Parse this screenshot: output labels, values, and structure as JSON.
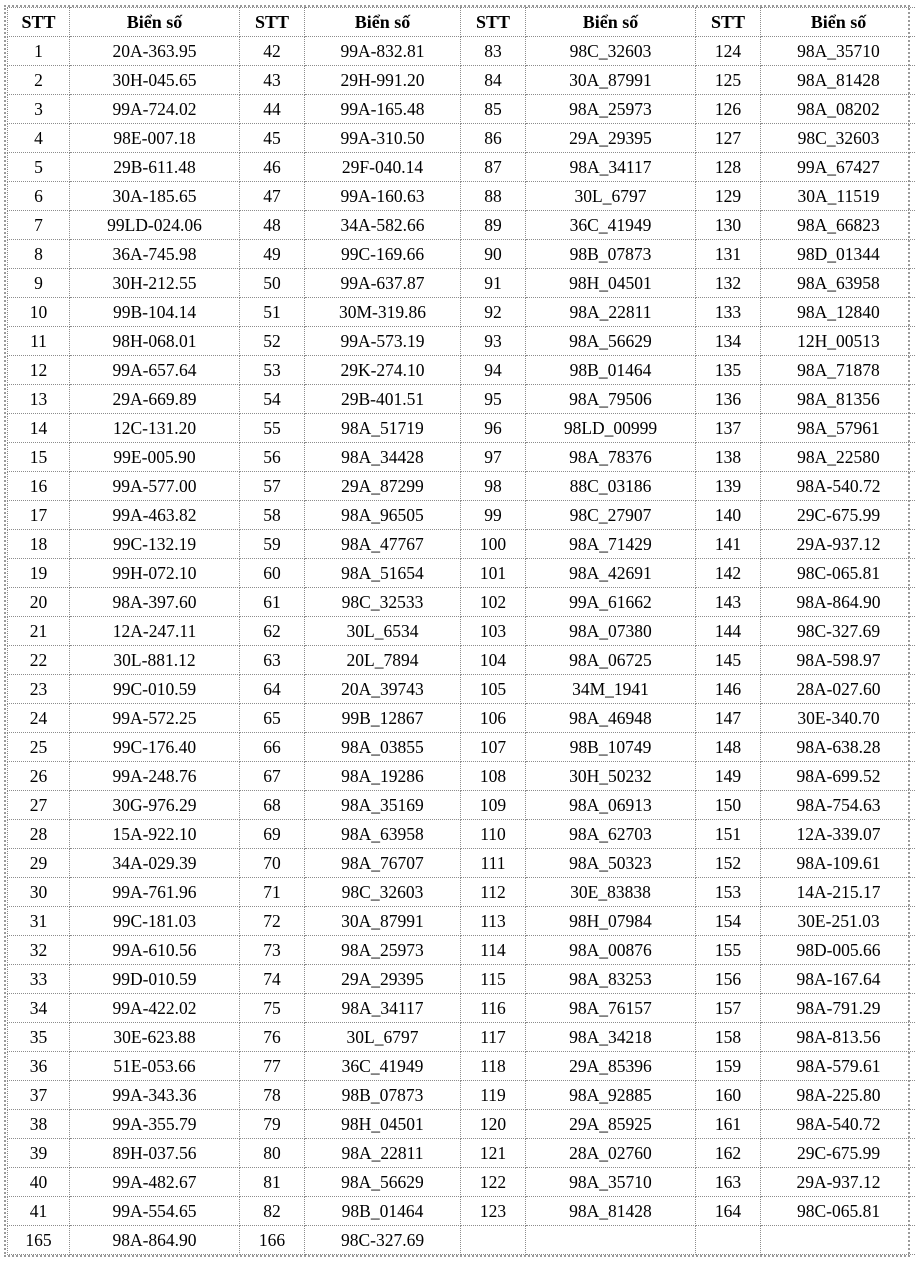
{
  "header": {
    "stt": "STT",
    "plate": "Biển số"
  },
  "rows": [
    [
      "1",
      "20A-363.95",
      "42",
      "99A-832.81",
      "83",
      "98C_32603",
      "124",
      "98A_35710"
    ],
    [
      "2",
      "30H-045.65",
      "43",
      "29H-991.20",
      "84",
      "30A_87991",
      "125",
      "98A_81428"
    ],
    [
      "3",
      "99A-724.02",
      "44",
      "99A-165.48",
      "85",
      "98A_25973",
      "126",
      "98A_08202"
    ],
    [
      "4",
      "98E-007.18",
      "45",
      "99A-310.50",
      "86",
      "29A_29395",
      "127",
      "98C_32603"
    ],
    [
      "5",
      "29B-611.48",
      "46",
      "29F-040.14",
      "87",
      "98A_34117",
      "128",
      "99A_67427"
    ],
    [
      "6",
      "30A-185.65",
      "47",
      "99A-160.63",
      "88",
      "30L_6797",
      "129",
      "30A_11519"
    ],
    [
      "7",
      "99LD-024.06",
      "48",
      "34A-582.66",
      "89",
      "36C_41949",
      "130",
      "98A_66823"
    ],
    [
      "8",
      "36A-745.98",
      "49",
      "99C-169.66",
      "90",
      "98B_07873",
      "131",
      "98D_01344"
    ],
    [
      "9",
      "30H-212.55",
      "50",
      "99A-637.87",
      "91",
      "98H_04501",
      "132",
      "98A_63958"
    ],
    [
      "10",
      "99B-104.14",
      "51",
      "30M-319.86",
      "92",
      "98A_22811",
      "133",
      "98A_12840"
    ],
    [
      "11",
      "98H-068.01",
      "52",
      "99A-573.19",
      "93",
      "98A_56629",
      "134",
      "12H_00513"
    ],
    [
      "12",
      "99A-657.64",
      "53",
      "29K-274.10",
      "94",
      "98B_01464",
      "135",
      "98A_71878"
    ],
    [
      "13",
      "29A-669.89",
      "54",
      "29B-401.51",
      "95",
      "98A_79506",
      "136",
      "98A_81356"
    ],
    [
      "14",
      "12C-131.20",
      "55",
      "98A_51719",
      "96",
      "98LD_00999",
      "137",
      "98A_57961"
    ],
    [
      "15",
      "99E-005.90",
      "56",
      "98A_34428",
      "97",
      "98A_78376",
      "138",
      "98A_22580"
    ],
    [
      "16",
      "99A-577.00",
      "57",
      "29A_87299",
      "98",
      "88C_03186",
      "139",
      "98A-540.72"
    ],
    [
      "17",
      "99A-463.82",
      "58",
      "98A_96505",
      "99",
      "98C_27907",
      "140",
      "29C-675.99"
    ],
    [
      "18",
      "99C-132.19",
      "59",
      "98A_47767",
      "100",
      "98A_71429",
      "141",
      "29A-937.12"
    ],
    [
      "19",
      "99H-072.10",
      "60",
      "98A_51654",
      "101",
      "98A_42691",
      "142",
      "98C-065.81"
    ],
    [
      "20",
      "98A-397.60",
      "61",
      "98C_32533",
      "102",
      "99A_61662",
      "143",
      "98A-864.90"
    ],
    [
      "21",
      "12A-247.11",
      "62",
      "30L_6534",
      "103",
      "98A_07380",
      "144",
      "98C-327.69"
    ],
    [
      "22",
      "30L-881.12",
      "63",
      "20L_7894",
      "104",
      "98A_06725",
      "145",
      "98A-598.97"
    ],
    [
      "23",
      "99C-010.59",
      "64",
      "20A_39743",
      "105",
      "34M_1941",
      "146",
      "28A-027.60"
    ],
    [
      "24",
      "99A-572.25",
      "65",
      "99B_12867",
      "106",
      "98A_46948",
      "147",
      "30E-340.70"
    ],
    [
      "25",
      "99C-176.40",
      "66",
      "98A_03855",
      "107",
      "98B_10749",
      "148",
      "98A-638.28"
    ],
    [
      "26",
      "99A-248.76",
      "67",
      "98A_19286",
      "108",
      "30H_50232",
      "149",
      "98A-699.52"
    ],
    [
      "27",
      "30G-976.29",
      "68",
      "98A_35169",
      "109",
      "98A_06913",
      "150",
      "98A-754.63"
    ],
    [
      "28",
      "15A-922.10",
      "69",
      "98A_63958",
      "110",
      "98A_62703",
      "151",
      "12A-339.07"
    ],
    [
      "29",
      "34A-029.39",
      "70",
      "98A_76707",
      "111",
      "98A_50323",
      "152",
      "98A-109.61"
    ],
    [
      "30",
      "99A-761.96",
      "71",
      "98C_32603",
      "112",
      "30E_83838",
      "153",
      "14A-215.17"
    ],
    [
      "31",
      "99C-181.03",
      "72",
      "30A_87991",
      "113",
      "98H_07984",
      "154",
      "30E-251.03"
    ],
    [
      "32",
      "99A-610.56",
      "73",
      "98A_25973",
      "114",
      "98A_00876",
      "155",
      "98D-005.66"
    ],
    [
      "33",
      "99D-010.59",
      "74",
      "29A_29395",
      "115",
      "98A_83253",
      "156",
      "98A-167.64"
    ],
    [
      "34",
      "99A-422.02",
      "75",
      "98A_34117",
      "116",
      "98A_76157",
      "157",
      "98A-791.29"
    ],
    [
      "35",
      "30E-623.88",
      "76",
      "30L_6797",
      "117",
      "98A_34218",
      "158",
      "98A-813.56"
    ],
    [
      "36",
      "51E-053.66",
      "77",
      "36C_41949",
      "118",
      "29A_85396",
      "159",
      "98A-579.61"
    ],
    [
      "37",
      "99A-343.36",
      "78",
      "98B_07873",
      "119",
      "98A_92885",
      "160",
      "98A-225.80"
    ],
    [
      "38",
      "99A-355.79",
      "79",
      "98H_04501",
      "120",
      "29A_85925",
      "161",
      "98A-540.72"
    ],
    [
      "39",
      "89H-037.56",
      "80",
      "98A_22811",
      "121",
      "28A_02760",
      "162",
      "29C-675.99"
    ],
    [
      "40",
      "99A-482.67",
      "81",
      "98A_56629",
      "122",
      "98A_35710",
      "163",
      "29A-937.12"
    ],
    [
      "41",
      "99A-554.65",
      "82",
      "98B_01464",
      "123",
      "98A_81428",
      "164",
      "98C-065.81"
    ],
    [
      "165",
      "98A-864.90",
      "166",
      "98C-327.69",
      "",
      "",
      "",
      ""
    ]
  ]
}
